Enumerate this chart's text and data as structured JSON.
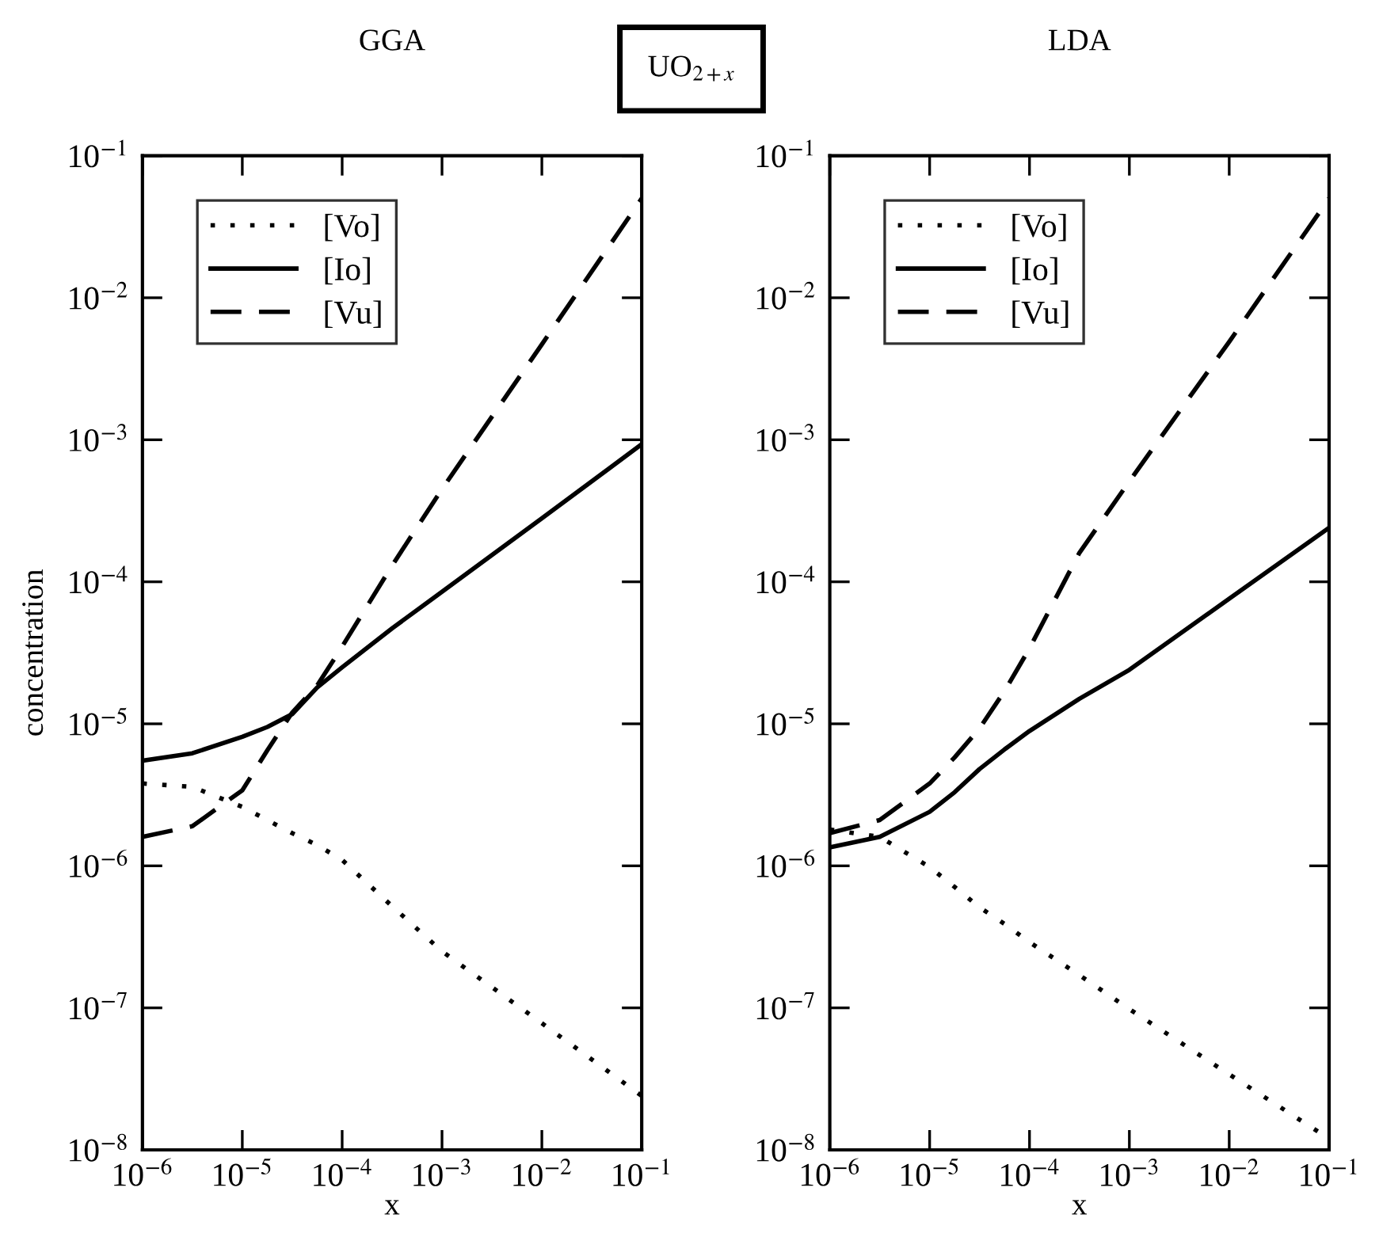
{
  "chart_data": [
    {
      "type": "line",
      "title": "GGA",
      "xlabel": "x",
      "ylabel": "concentration",
      "log": "xy",
      "legend": "top left",
      "grid": false,
      "annotations": [
        "UO$_{2+x}$"
      ],
      "x": [
        1e-06,
        3.16e-06,
        1e-05,
        1.78e-05,
        3.16e-05,
        5.62e-05,
        0.0001,
        0.000316,
        0.001,
        0.01,
        0.1
      ],
      "xlim": [
        1e-06,
        0.1
      ],
      "ylim": [
        1e-08,
        0.1
      ],
      "xticks": [
        {
          "value": 1e-06,
          "label": "10$^{−6}$"
        },
        {
          "value": 1e-05,
          "label": "10$^{−5}$"
        },
        {
          "value": 0.0001,
          "label": "10$^{−4}$"
        },
        {
          "value": 0.001,
          "label": "10$^{−3}$"
        },
        {
          "value": 0.01,
          "label": "10$^{−2}$"
        },
        {
          "value": 0.1,
          "label": "10$^{−1}$"
        }
      ],
      "yticks": [
        {
          "value": 1e-08,
          "label": "10$^{−8}$"
        },
        {
          "value": 1e-07,
          "label": "10$^{−7}$"
        },
        {
          "value": 1e-06,
          "label": "10$^{−6}$"
        },
        {
          "value": 1e-05,
          "label": "10$^{−5}$"
        },
        {
          "value": 0.0001,
          "label": "10$^{−4}$"
        },
        {
          "value": 0.001,
          "label": "10$^{−3}$"
        },
        {
          "value": 0.01,
          "label": "10$^{−2}$"
        },
        {
          "value": 0.1,
          "label": "10$^{−1}$"
        }
      ],
      "series": [
        {
          "name": "[Vo]",
          "color": "#000000",
          "line_style": "dotted",
          "values": [
            3.8e-06,
            3.6e-06,
            2.6e-06,
            2.1e-06,
            1.7e-06,
            1.4e-06,
            1.1e-06,
            5.2e-07,
            2.5e-07,
            7.8e-08,
            2.4e-08
          ]
        },
        {
          "name": "[Io]",
          "color": "#000000",
          "line_style": "solid",
          "values": [
            5.5e-06,
            6.2e-06,
            8.1e-06,
            9.5e-06,
            1.17e-05,
            1.8e-05,
            2.5e-05,
            4.7e-05,
            8.5e-05,
            0.00028,
            0.00093
          ]
        },
        {
          "name": "[Vu]",
          "color": "#000000",
          "line_style": "dashed",
          "values": [
            1.6e-06,
            1.9e-06,
            3.4e-06,
            6.5e-06,
            1.2e-05,
            1.86e-05,
            3.5e-05,
            0.00013,
            0.00045,
            0.0047,
            0.05
          ]
        }
      ]
    },
    {
      "type": "line",
      "title": "LDA",
      "xlabel": "x",
      "log": "xy",
      "legend": "top left",
      "grid": false,
      "x": [
        1e-06,
        3.16e-06,
        1e-05,
        1.78e-05,
        3.16e-05,
        5.62e-05,
        0.0001,
        0.000316,
        0.001,
        0.01,
        0.1
      ],
      "xlim": [
        1e-06,
        0.1
      ],
      "ylim": [
        1e-08,
        0.1
      ],
      "xticks": [
        {
          "value": 1e-06,
          "label": "10$^{−6}$"
        },
        {
          "value": 1e-05,
          "label": "10$^{−5}$"
        },
        {
          "value": 0.0001,
          "label": "10$^{−4}$"
        },
        {
          "value": 0.001,
          "label": "10$^{−3}$"
        },
        {
          "value": 0.01,
          "label": "10$^{−2}$"
        },
        {
          "value": 0.1,
          "label": "10$^{−1}$"
        }
      ],
      "yticks": [
        {
          "value": 1e-08,
          "label": "10$^{−8}$"
        },
        {
          "value": 1e-07,
          "label": "10$^{−7}$"
        },
        {
          "value": 1e-06,
          "label": "10$^{−6}$"
        },
        {
          "value": 1e-05,
          "label": "10$^{−5}$"
        },
        {
          "value": 0.0001,
          "label": "10$^{−4}$"
        },
        {
          "value": 0.001,
          "label": "10$^{−3}$"
        },
        {
          "value": 0.01,
          "label": "10$^{−2}$"
        },
        {
          "value": 0.1,
          "label": "10$^{−1}$"
        }
      ],
      "series": [
        {
          "name": "[Vo]",
          "color": "#000000",
          "line_style": "dotted",
          "values": [
            1.8e-06,
            1.6e-06,
            9.8e-07,
            7.1e-07,
            5.1e-07,
            3.9e-07,
            2.9e-07,
            1.7e-07,
            9.8e-08,
            3.4e-08,
            1.2e-08
          ]
        },
        {
          "name": "[Io]",
          "color": "#000000",
          "line_style": "solid",
          "values": [
            1.35e-06,
            1.6e-06,
            2.4e-06,
            3.3e-06,
            4.8e-06,
            6.6e-06,
            8.9e-06,
            1.5e-05,
            2.4e-05,
            7.6e-05,
            0.00024
          ]
        },
        {
          "name": "[Vu]",
          "color": "#000000",
          "line_style": "dashed",
          "values": [
            1.7e-06,
            2.1e-06,
            3.8e-06,
            5.8e-06,
            9.3e-06,
            1.7e-05,
            3.4e-05,
            0.00016,
            0.00051,
            0.0049,
            0.05
          ]
        }
      ]
    }
  ]
}
